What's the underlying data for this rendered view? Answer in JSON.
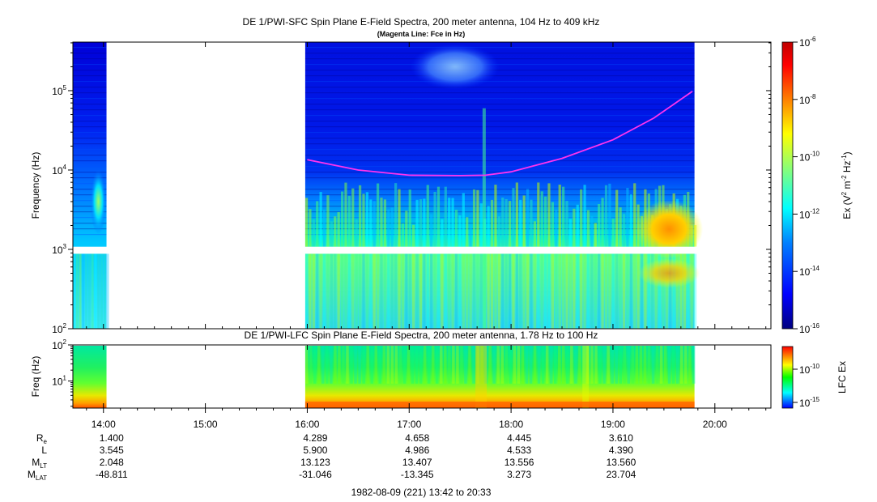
{
  "chart_data": [
    {
      "type": "heatmap",
      "title": "DE 1/PWI-SFC  Spin Plane E-Field Spectra, 200 meter antenna, 104 Hz to 409 kHz",
      "subtitle": "(Magenta Line: Fce in Hz)",
      "ylabel": "Frequency (Hz)",
      "y_ticks": [
        "10",
        "10",
        "10",
        "10"
      ],
      "y_tick_exponents": [
        "2",
        "3",
        "4",
        "5"
      ],
      "y_scale": "log",
      "ylim": [
        100,
        409000
      ],
      "data_coverage_hours": [
        [
          13.7,
          14.03
        ],
        [
          15.98,
          19.8
        ]
      ],
      "colorbar": {
        "label_base": "Ex (V",
        "label_sup1": "2",
        "label_mid": " m",
        "label_sup2": "-2",
        "label_hz": " Hz",
        "label_sup3": "-1",
        "label_end": ")",
        "tick_base": "10",
        "tick_exponents": [
          "-6",
          "-8",
          "-10",
          "-12",
          "-14",
          "-16"
        ],
        "range_exponent": [
          -16,
          -6
        ]
      },
      "fce_line": {
        "name": "Fce",
        "x_hours": [
          16.0,
          16.5,
          17.0,
          17.5,
          17.75,
          18.0,
          18.5,
          19.0,
          19.4,
          19.78
        ],
        "y_hz": [
          13500,
          10000,
          8600,
          8500,
          8600,
          9500,
          14000,
          24000,
          45000,
          98000
        ]
      }
    },
    {
      "type": "heatmap",
      "title": "DE 1/PWI-LFC  Spin Plane E-Field Spectra, 200 meter antenna, 1.78 Hz to 100 Hz",
      "ylabel": "Freq (Hz)",
      "y_ticks": [
        "10",
        "10"
      ],
      "y_tick_exponents": [
        "1",
        "2"
      ],
      "y_scale": "log",
      "ylim": [
        1.78,
        100
      ],
      "data_coverage_hours": [
        [
          13.7,
          14.03
        ],
        [
          15.98,
          19.8
        ]
      ],
      "colorbar": {
        "label": "LFC Ex",
        "tick_base": "10",
        "tick_exponents": [
          "-10",
          "-15"
        ]
      }
    }
  ],
  "x_axis": {
    "ticks": [
      "14:00",
      "15:00",
      "16:00",
      "17:00",
      "18:00",
      "19:00",
      "20:00"
    ],
    "tick_hours": [
      14,
      15,
      16,
      17,
      18,
      19,
      20
    ],
    "range_hours": [
      13.7,
      20.55
    ]
  },
  "ephemeris": {
    "labels": [
      {
        "base": "R",
        "sub": "e"
      },
      {
        "base": "L",
        "sub": ""
      },
      {
        "base": "M",
        "sub": "LT"
      },
      {
        "base": "M",
        "sub": "LAT"
      }
    ],
    "columns": [
      "14:00",
      "16:00",
      "17:00",
      "18:00",
      "19:00"
    ],
    "rows": [
      [
        "1.400",
        "4.289",
        "4.658",
        "4.445",
        "3.610"
      ],
      [
        "3.545",
        "5.900",
        "4.986",
        "4.533",
        "4.390"
      ],
      [
        "2.048",
        "13.123",
        "13.407",
        "13.556",
        "13.560"
      ],
      [
        "-48.811",
        "-31.046",
        "-13.345",
        "3.273",
        "23.704"
      ]
    ]
  },
  "time_range_label": "1982-08-09 (221) 13:42 to 20:33",
  "colors": {
    "palette": [
      "#00007f",
      "#0000ff",
      "#0080ff",
      "#00ffff",
      "#80ff80",
      "#ffff00",
      "#ff8000",
      "#ff0000",
      "#7f0000"
    ],
    "fce_line": "#ff33ee",
    "gap": "#ffffff"
  }
}
